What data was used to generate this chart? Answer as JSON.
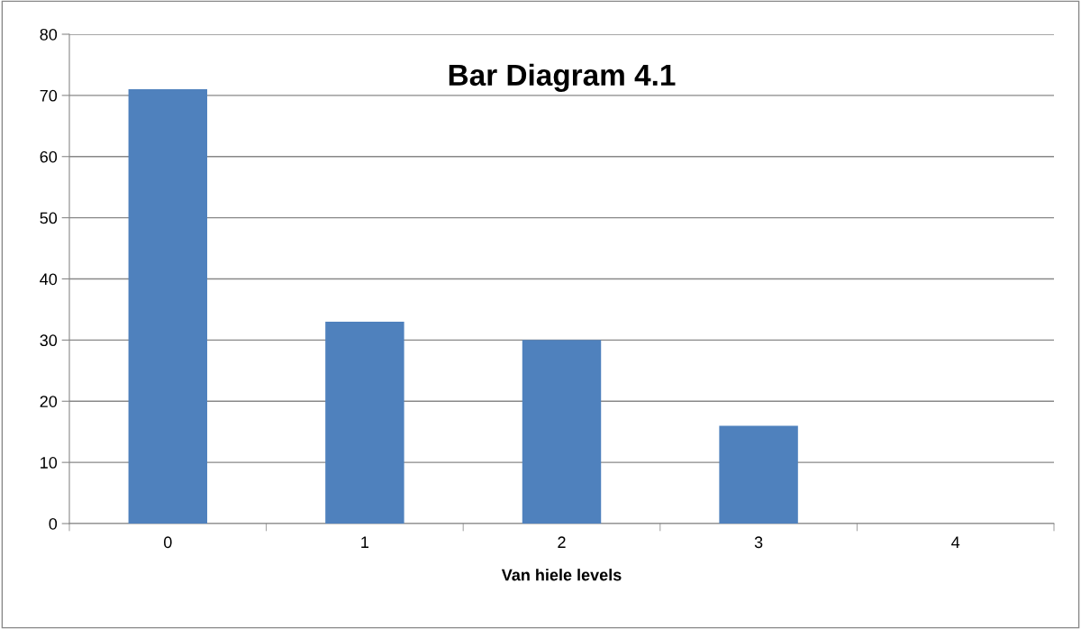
{
  "chart_data": {
    "type": "bar",
    "title": "Bar Diagram 4.1",
    "xlabel": "Van hiele levels",
    "categories": [
      "0",
      "1",
      "2",
      "3",
      "4"
    ],
    "values": [
      71,
      33,
      30,
      16,
      0
    ],
    "color": "#4f81bd",
    "ylim": [
      0,
      80
    ],
    "yticks": [
      0,
      10,
      20,
      30,
      40,
      50,
      60,
      70,
      80
    ],
    "grid": "y",
    "legend": false
  }
}
